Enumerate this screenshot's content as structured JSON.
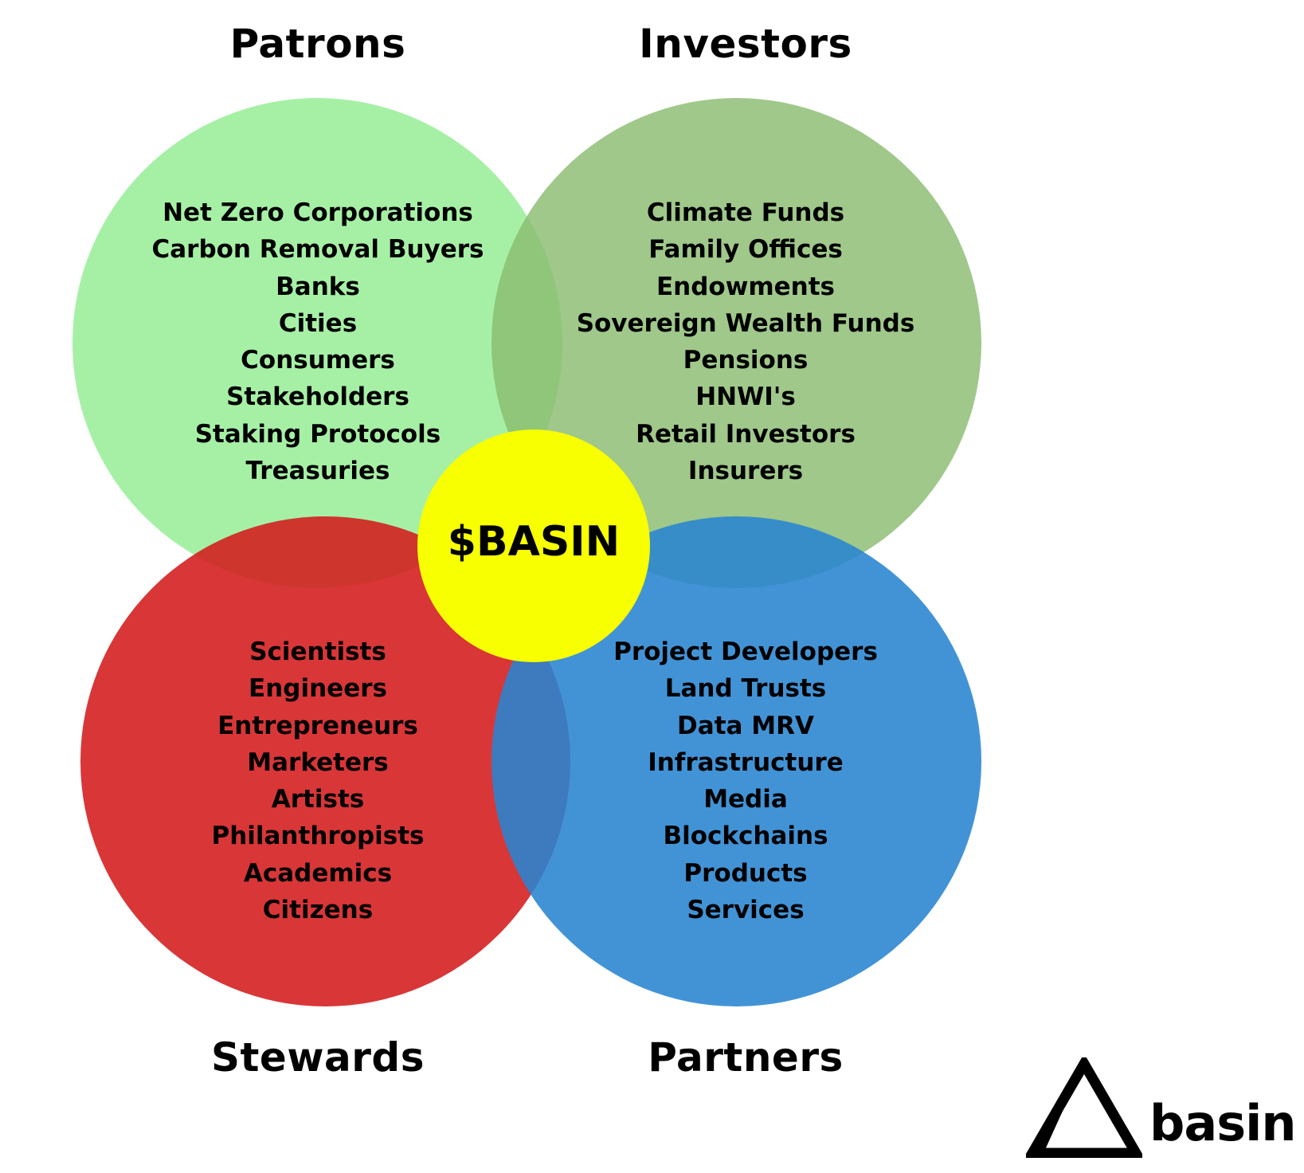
{
  "groups": {
    "patrons": {
      "title": "Patrons",
      "items": [
        "Net Zero Corporations",
        "Carbon Removal Buyers",
        "Banks",
        "Cities",
        "Consumers",
        "Stakeholders",
        "Staking Protocols",
        "Treasuries"
      ]
    },
    "investors": {
      "title": "Investors",
      "items": [
        "Climate Funds",
        "Family Offices",
        "Endowments",
        "Sovereign Wealth Funds",
        "Pensions",
        "HNWI's",
        "Retail Investors",
        "Insurers"
      ]
    },
    "stewards": {
      "title": "Stewards",
      "items": [
        "Scientists",
        "Engineers",
        "Entrepreneurs",
        "Marketers",
        "Artists",
        "Philanthropists",
        "Academics",
        "Citizens"
      ]
    },
    "partners": {
      "title": "Partners",
      "items": [
        "Project Developers",
        "Land Trusts",
        "Data MRV",
        "Infrastructure",
        "Media",
        "Blockchains",
        "Products",
        "Services"
      ]
    }
  },
  "center": {
    "label": "$BASIN"
  },
  "logo": {
    "wordmark": "basin",
    "icon": "triangle-logo-icon"
  },
  "colors": {
    "patrons": "#a6f0a6",
    "investors": "#8abc70",
    "stewards": "#d41a1c",
    "partners": "#2884d0",
    "center": "#f7ff00"
  }
}
